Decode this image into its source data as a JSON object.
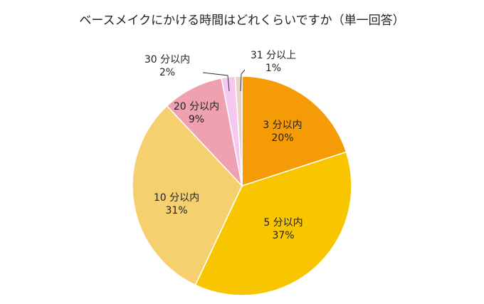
{
  "chart_data": {
    "type": "pie",
    "title": "ベースメイクにかける時間はどれくらいですか（単一回答）",
    "start": "12 o'clock",
    "direction": "clockwise",
    "slices": [
      {
        "label": "3 分以内",
        "value": 20,
        "value_label": "20%",
        "color": "#F59B05"
      },
      {
        "label": "5 分以内",
        "value": 37,
        "value_label": "37%",
        "color": "#F8C600"
      },
      {
        "label": "10 分以内",
        "value": 31,
        "value_label": "31%",
        "color": "#F6CF6E"
      },
      {
        "label": "20 分以内",
        "value": 9,
        "value_label": "9%",
        "color": "#EFA1B1"
      },
      {
        "label": "30 分以内",
        "value": 2,
        "value_label": "2%",
        "color": "#F4C8F0"
      },
      {
        "label": "31 分以上",
        "value": 1,
        "value_label": "1%",
        "color": "#E9D3C9"
      }
    ]
  }
}
